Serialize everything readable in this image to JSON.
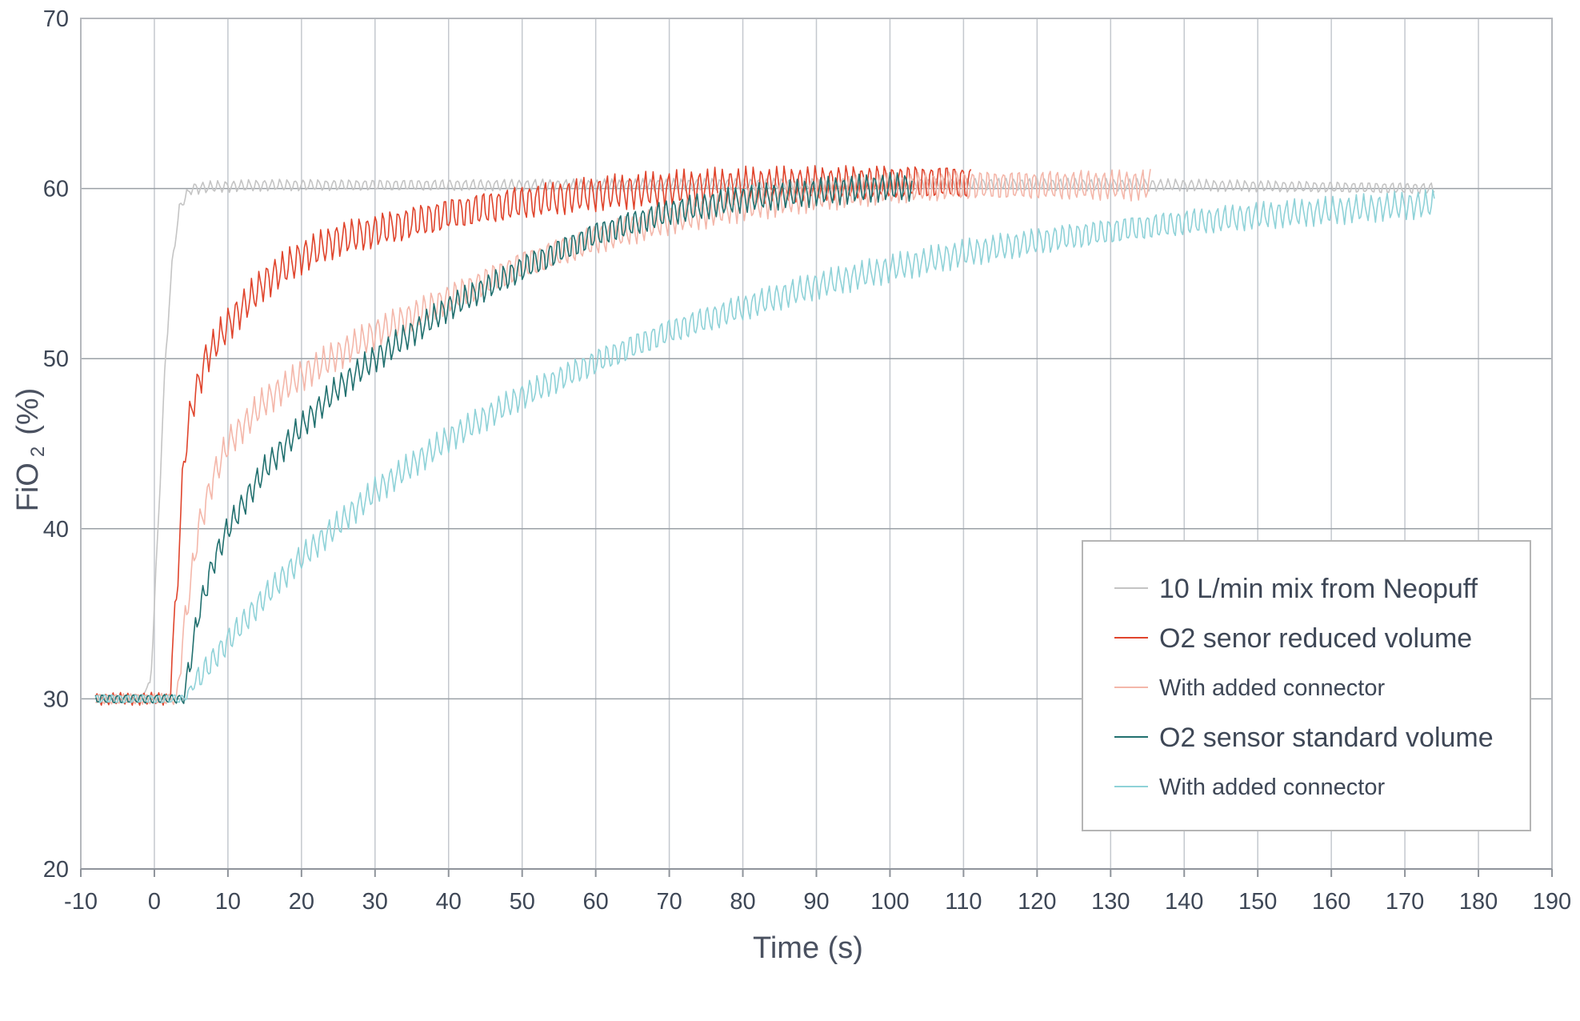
{
  "chart_data": {
    "type": "line",
    "xlabel": "Time (s)",
    "ylabel_parts": [
      "FiO",
      "2",
      "(%)"
    ],
    "xlim": [
      -10,
      190
    ],
    "ylim": [
      20,
      70
    ],
    "x_ticks": [
      -10,
      0,
      10,
      20,
      30,
      40,
      50,
      60,
      70,
      80,
      90,
      100,
      110,
      120,
      130,
      140,
      150,
      160,
      170,
      180,
      190
    ],
    "y_ticks": [
      20,
      30,
      40,
      50,
      60,
      70
    ],
    "grid": true,
    "legend_position": "bottom-right",
    "series": [
      {
        "name": "10 L/min mix from Neopuff",
        "color": "#c4c4c4",
        "x": [
          -8,
          -2,
          -0.5,
          0.5,
          1.5,
          2.5,
          3.5,
          5,
          8,
          15,
          30,
          60,
          100,
          140,
          174
        ],
        "y": [
          30,
          30,
          31,
          40,
          50,
          56,
          59,
          60,
          60.1,
          60.2,
          60.2,
          60.2,
          60.3,
          60.2,
          60
        ],
        "noise_amplitude": 0.3
      },
      {
        "name": "O2 senor reduced volume",
        "color": "#e0442c",
        "x": [
          -8,
          2,
          3,
          4,
          5,
          7,
          10,
          15,
          20,
          25,
          30,
          40,
          50,
          60,
          70,
          80,
          90,
          100,
          110,
          111
        ],
        "y": [
          30,
          30,
          36,
          44,
          47,
          50,
          52,
          54.5,
          56,
          57,
          57.5,
          58.5,
          59.2,
          59.7,
          60,
          60.2,
          60.3,
          60.4,
          60.4,
          60.3
        ],
        "noise_amplitude": 0.9
      },
      {
        "name": "With added connector",
        "color": "#f4b7aa",
        "x": [
          -8,
          3,
          4,
          5,
          6,
          8,
          10,
          15,
          20,
          30,
          40,
          50,
          60,
          70,
          80,
          90,
          100,
          110,
          120,
          130,
          135.5
        ],
        "y": [
          30,
          30,
          34,
          37,
          40,
          43,
          45,
          47.5,
          49,
          51.5,
          53.5,
          55.5,
          57,
          58.2,
          59,
          59.6,
          60,
          60.2,
          60.2,
          60.2,
          60.2
        ],
        "noise_amplitude": 0.8
      },
      {
        "name": "O2 sensor standard volume",
        "color": "#21706f",
        "x": [
          -8,
          4,
          6,
          8,
          10,
          15,
          20,
          25,
          30,
          35,
          40,
          50,
          60,
          70,
          80,
          90,
          100,
          103
        ],
        "y": [
          30,
          30,
          35,
          38,
          40,
          43.5,
          46,
          48.3,
          50,
          51.5,
          53,
          55.3,
          57.3,
          58.6,
          59.4,
          59.8,
          60.1,
          60.1
        ],
        "noise_amplitude": 0.7
      },
      {
        "name": "With added connector",
        "color": "#8fd2d8",
        "x": [
          -8,
          4,
          6,
          8,
          10,
          15,
          20,
          30,
          40,
          50,
          60,
          70,
          80,
          90,
          100,
          110,
          120,
          130,
          140,
          150,
          160,
          170,
          174
        ],
        "y": [
          30,
          30,
          31.2,
          32.3,
          33.4,
          36,
          38.3,
          42.2,
          45.3,
          47.8,
          49.8,
          51.6,
          53,
          54.3,
          55.3,
          56.2,
          56.9,
          57.5,
          58,
          58.4,
          58.7,
          59,
          59.1
        ],
        "noise_amplitude": 0.7
      }
    ]
  }
}
